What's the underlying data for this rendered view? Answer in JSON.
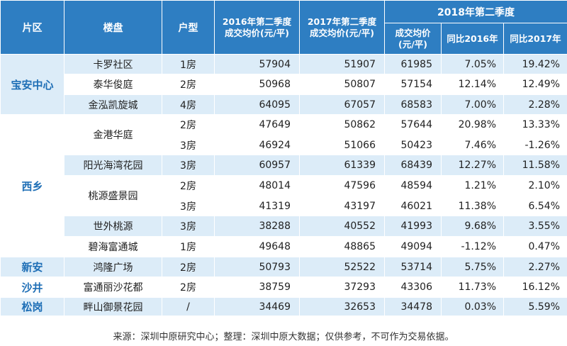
{
  "headers": {
    "district": "片区",
    "property": "楼盘",
    "unit_type": "户型",
    "q2_2016": "2016年第二季度成交均价(元/平)",
    "q2_2017": "2017年第二季度成交均价(元/平)",
    "q2_2018": "2018年第二季度",
    "q2_2018_price": "成交均价(元/平)",
    "yoy_2016": "同比2016年",
    "yoy_2017": "同比2017年"
  },
  "districts": {
    "baoan": "宝安中心",
    "xixiang": "西乡",
    "xinan": "新安",
    "shajing": "沙井",
    "songgang": "松岗"
  },
  "rows": [
    {
      "property": "卡罗社区",
      "unit": "1房",
      "p2016": "57904",
      "p2017": "51907",
      "p2018": "61985",
      "yoy16": "7.05%",
      "yoy17": "19.42%"
    },
    {
      "property": "泰华俊庭",
      "unit": "2房",
      "p2016": "50968",
      "p2017": "50807",
      "p2018": "57154",
      "yoy16": "12.14%",
      "yoy17": "12.49%"
    },
    {
      "property": "金泓凯旋城",
      "unit": "4房",
      "p2016": "64095",
      "p2017": "67057",
      "p2018": "68583",
      "yoy16": "7.00%",
      "yoy17": "2.28%"
    },
    {
      "property": "金港华庭",
      "unit": "2房",
      "p2016": "47649",
      "p2017": "50862",
      "p2018": "57644",
      "yoy16": "20.98%",
      "yoy17": "13.33%"
    },
    {
      "property": "金港华庭",
      "unit": "3房",
      "p2016": "46924",
      "p2017": "51066",
      "p2018": "50423",
      "yoy16": "7.46%",
      "yoy17": "-1.26%"
    },
    {
      "property": "阳光海湾花园",
      "unit": "3房",
      "p2016": "60957",
      "p2017": "61339",
      "p2018": "68439",
      "yoy16": "12.27%",
      "yoy17": "11.58%"
    },
    {
      "property": "桃源盛景园",
      "unit": "2房",
      "p2016": "48014",
      "p2017": "47596",
      "p2018": "48594",
      "yoy16": "1.21%",
      "yoy17": "2.10%"
    },
    {
      "property": "桃源盛景园",
      "unit": "3房",
      "p2016": "41319",
      "p2017": "43197",
      "p2018": "46021",
      "yoy16": "11.38%",
      "yoy17": "6.54%"
    },
    {
      "property": "世外桃源",
      "unit": "3房",
      "p2016": "38288",
      "p2017": "40552",
      "p2018": "41993",
      "yoy16": "9.68%",
      "yoy17": "3.55%"
    },
    {
      "property": "碧海富通城",
      "unit": "1房",
      "p2016": "49648",
      "p2017": "48865",
      "p2018": "49094",
      "yoy16": "-1.12%",
      "yoy17": "0.47%"
    },
    {
      "property": "鸿隆广场",
      "unit": "2房",
      "p2016": "50793",
      "p2017": "52522",
      "p2018": "53714",
      "yoy16": "5.75%",
      "yoy17": "2.27%"
    },
    {
      "property": "富通丽沙花都",
      "unit": "2房",
      "p2016": "38759",
      "p2017": "37293",
      "p2018": "43306",
      "yoy16": "11.73%",
      "yoy17": "16.12%"
    },
    {
      "property": "畔山御景花园",
      "unit": "/",
      "p2016": "34469",
      "p2017": "32653",
      "p2018": "34478",
      "yoy16": "0.03%",
      "yoy17": "5.59%"
    }
  ],
  "footer": {
    "source": "来源：深圳中原研究中心；整理：深圳中原大数据；仅供参考，不可作为交易依据。"
  },
  "colors": {
    "header_bg": "#2e7ec2",
    "band_light": "#dcecf8",
    "district_text": "#1f6fb6"
  }
}
